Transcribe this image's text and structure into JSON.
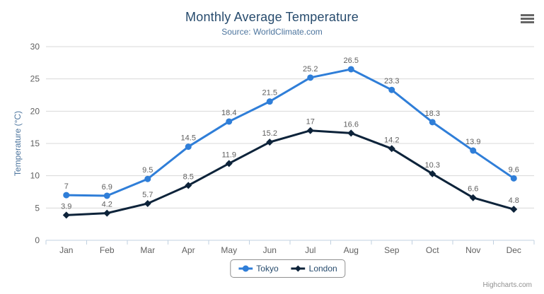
{
  "chart_data": {
    "type": "line",
    "title": "Monthly Average Temperature",
    "subtitle": "Source: WorldClimate.com",
    "categories": [
      "Jan",
      "Feb",
      "Mar",
      "Apr",
      "May",
      "Jun",
      "Jul",
      "Aug",
      "Sep",
      "Oct",
      "Nov",
      "Dec"
    ],
    "series": [
      {
        "name": "Tokyo",
        "color": "#2f7ed8",
        "marker": "circle",
        "values": [
          7,
          6.9,
          9.5,
          14.5,
          18.4,
          21.5,
          25.2,
          26.5,
          23.3,
          18.3,
          13.9,
          9.6
        ]
      },
      {
        "name": "London",
        "color": "#0d233a",
        "marker": "diamond",
        "values": [
          3.9,
          4.2,
          5.7,
          8.5,
          11.9,
          15.2,
          17,
          16.6,
          14.2,
          10.3,
          6.6,
          4.8
        ]
      }
    ],
    "xlabel": "",
    "ylabel": "Temperature (°C)",
    "ylim": [
      0,
      30
    ],
    "ytick_step": 5,
    "yticks": [
      0,
      5,
      10,
      15,
      20,
      25,
      30
    ],
    "grid": true,
    "data_labels": true,
    "legend_position": "bottom-center"
  },
  "legend": {
    "items": [
      "Tokyo",
      "London"
    ]
  },
  "credits": {
    "label": "Highcharts.com"
  },
  "icons": {
    "export_menu": "hamburger-icon"
  },
  "colors": {
    "title": "#274b6d",
    "subtitle": "#4d759e",
    "axis_title": "#4d759e",
    "axis_labels": "#606060",
    "data_labels": "#606060",
    "grid_line": "#d8d8d8",
    "axis_line": "#c0d0e0",
    "legend_border": "#909090",
    "legend_text": "#274b6d",
    "credits_text": "#909090",
    "menu_icon": "#666666",
    "background": "#ffffff"
  }
}
